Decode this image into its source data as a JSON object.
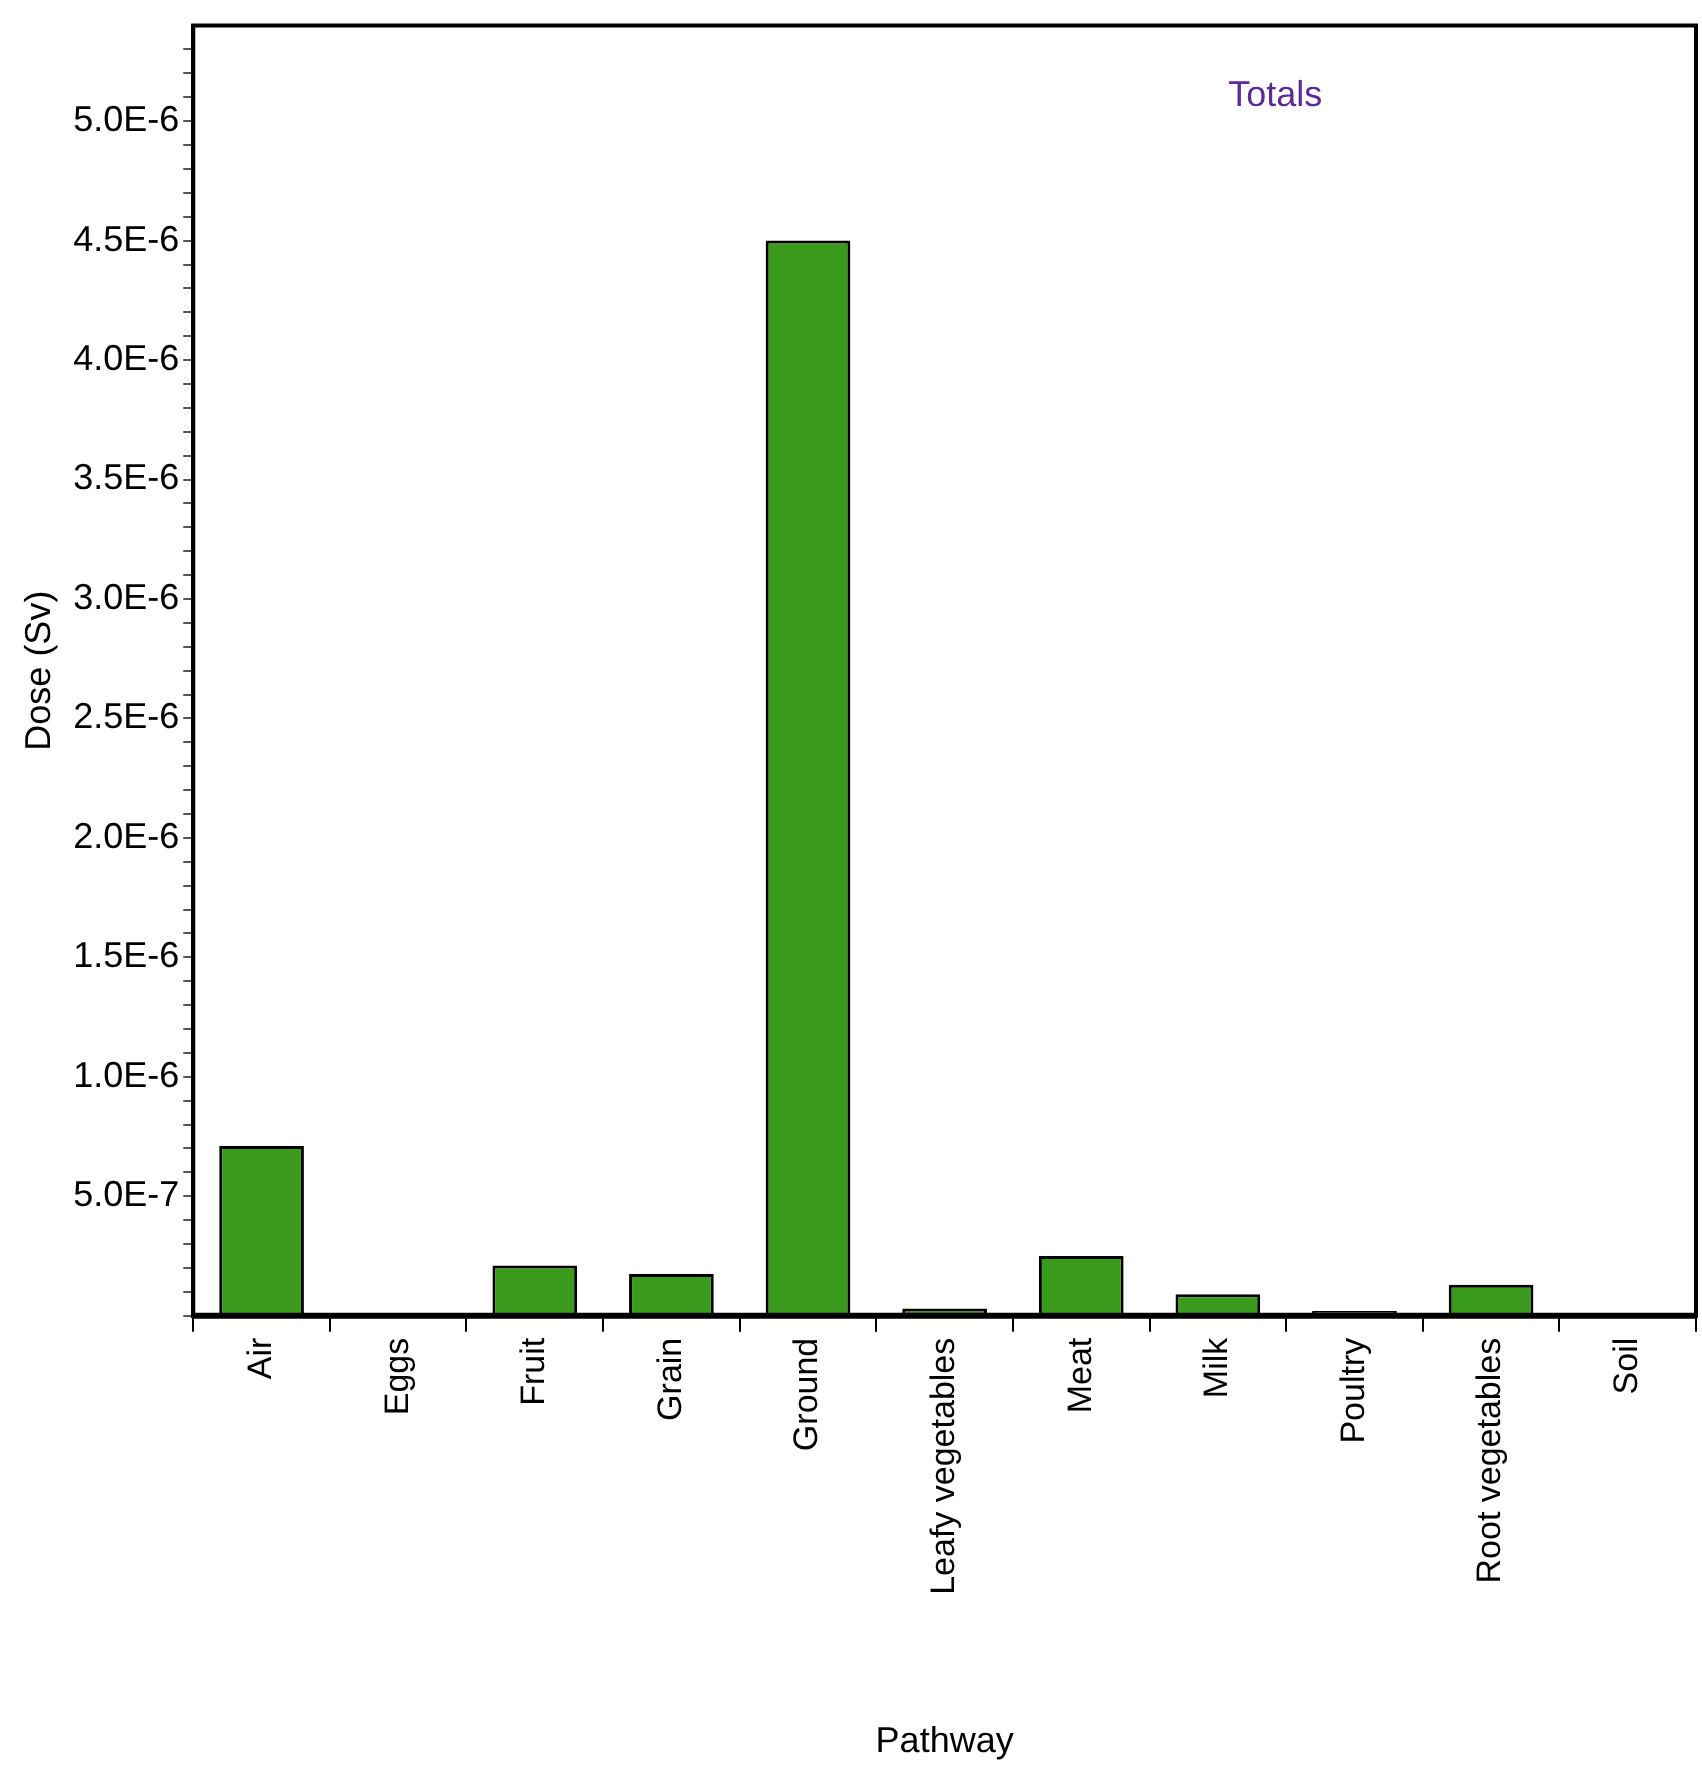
{
  "chart_data": {
    "type": "bar",
    "xlabel": "Pathway",
    "ylabel": "Dose (Sv)",
    "categories": [
      "Air",
      "Eggs",
      "Fruit",
      "Grain",
      "Ground",
      "Leafy vegetables",
      "Meat",
      "Milk",
      "Poultry",
      "Root vegetables",
      "Soil"
    ],
    "values": [
      7.1e-07,
      1e-08,
      2.1e-07,
      1.75e-07,
      4.5e-06,
      3e-08,
      2.5e-07,
      9e-08,
      2e-08,
      1.3e-07,
      5e-09
    ],
    "color": "#3a9a1c",
    "annotations": [
      "Totals"
    ],
    "ylim": [
      0,
      5.4e-06
    ],
    "yticks": [
      {
        "value": 0,
        "label": null
      },
      {
        "value": 1e-07,
        "label": null
      },
      {
        "value": 2e-07,
        "label": null
      },
      {
        "value": 3e-07,
        "label": null
      },
      {
        "value": 4e-07,
        "label": null
      },
      {
        "value": 5e-07,
        "label": "5.0E-7"
      },
      {
        "value": 6e-07,
        "label": null
      },
      {
        "value": 7e-07,
        "label": null
      },
      {
        "value": 8e-07,
        "label": null
      },
      {
        "value": 9e-07,
        "label": null
      },
      {
        "value": 1e-06,
        "label": "1.0E-6"
      },
      {
        "value": 1.1e-06,
        "label": null
      },
      {
        "value": 1.2e-06,
        "label": null
      },
      {
        "value": 1.3e-06,
        "label": null
      },
      {
        "value": 1.4e-06,
        "label": null
      },
      {
        "value": 1.5e-06,
        "label": "1.5E-6"
      },
      {
        "value": 1.6e-06,
        "label": null
      },
      {
        "value": 1.7e-06,
        "label": null
      },
      {
        "value": 1.8e-06,
        "label": null
      },
      {
        "value": 1.9e-06,
        "label": null
      },
      {
        "value": 2e-06,
        "label": "2.0E-6"
      },
      {
        "value": 2.1e-06,
        "label": null
      },
      {
        "value": 2.2e-06,
        "label": null
      },
      {
        "value": 2.3e-06,
        "label": null
      },
      {
        "value": 2.4e-06,
        "label": null
      },
      {
        "value": 2.5e-06,
        "label": "2.5E-6"
      },
      {
        "value": 2.6e-06,
        "label": null
      },
      {
        "value": 2.7e-06,
        "label": null
      },
      {
        "value": 2.8e-06,
        "label": null
      },
      {
        "value": 2.9e-06,
        "label": null
      },
      {
        "value": 3e-06,
        "label": "3.0E-6"
      },
      {
        "value": 3.1e-06,
        "label": null
      },
      {
        "value": 3.2e-06,
        "label": null
      },
      {
        "value": 3.3e-06,
        "label": null
      },
      {
        "value": 3.4e-06,
        "label": null
      },
      {
        "value": 3.5e-06,
        "label": "3.5E-6"
      },
      {
        "value": 3.6e-06,
        "label": null
      },
      {
        "value": 3.7e-06,
        "label": null
      },
      {
        "value": 3.8e-06,
        "label": null
      },
      {
        "value": 3.9e-06,
        "label": null
      },
      {
        "value": 4e-06,
        "label": "4.0E-6"
      },
      {
        "value": 4.1e-06,
        "label": null
      },
      {
        "value": 4.2e-06,
        "label": null
      },
      {
        "value": 4.3e-06,
        "label": null
      },
      {
        "value": 4.4e-06,
        "label": null
      },
      {
        "value": 4.5e-06,
        "label": "4.5E-6"
      },
      {
        "value": 4.6e-06,
        "label": null
      },
      {
        "value": 4.7e-06,
        "label": null
      },
      {
        "value": 4.8e-06,
        "label": null
      },
      {
        "value": 4.9e-06,
        "label": null
      },
      {
        "value": 5e-06,
        "label": "5.0E-6"
      },
      {
        "value": 5.1e-06,
        "label": null
      },
      {
        "value": 5.2e-06,
        "label": null
      },
      {
        "value": 5.3e-06,
        "label": null
      }
    ]
  }
}
